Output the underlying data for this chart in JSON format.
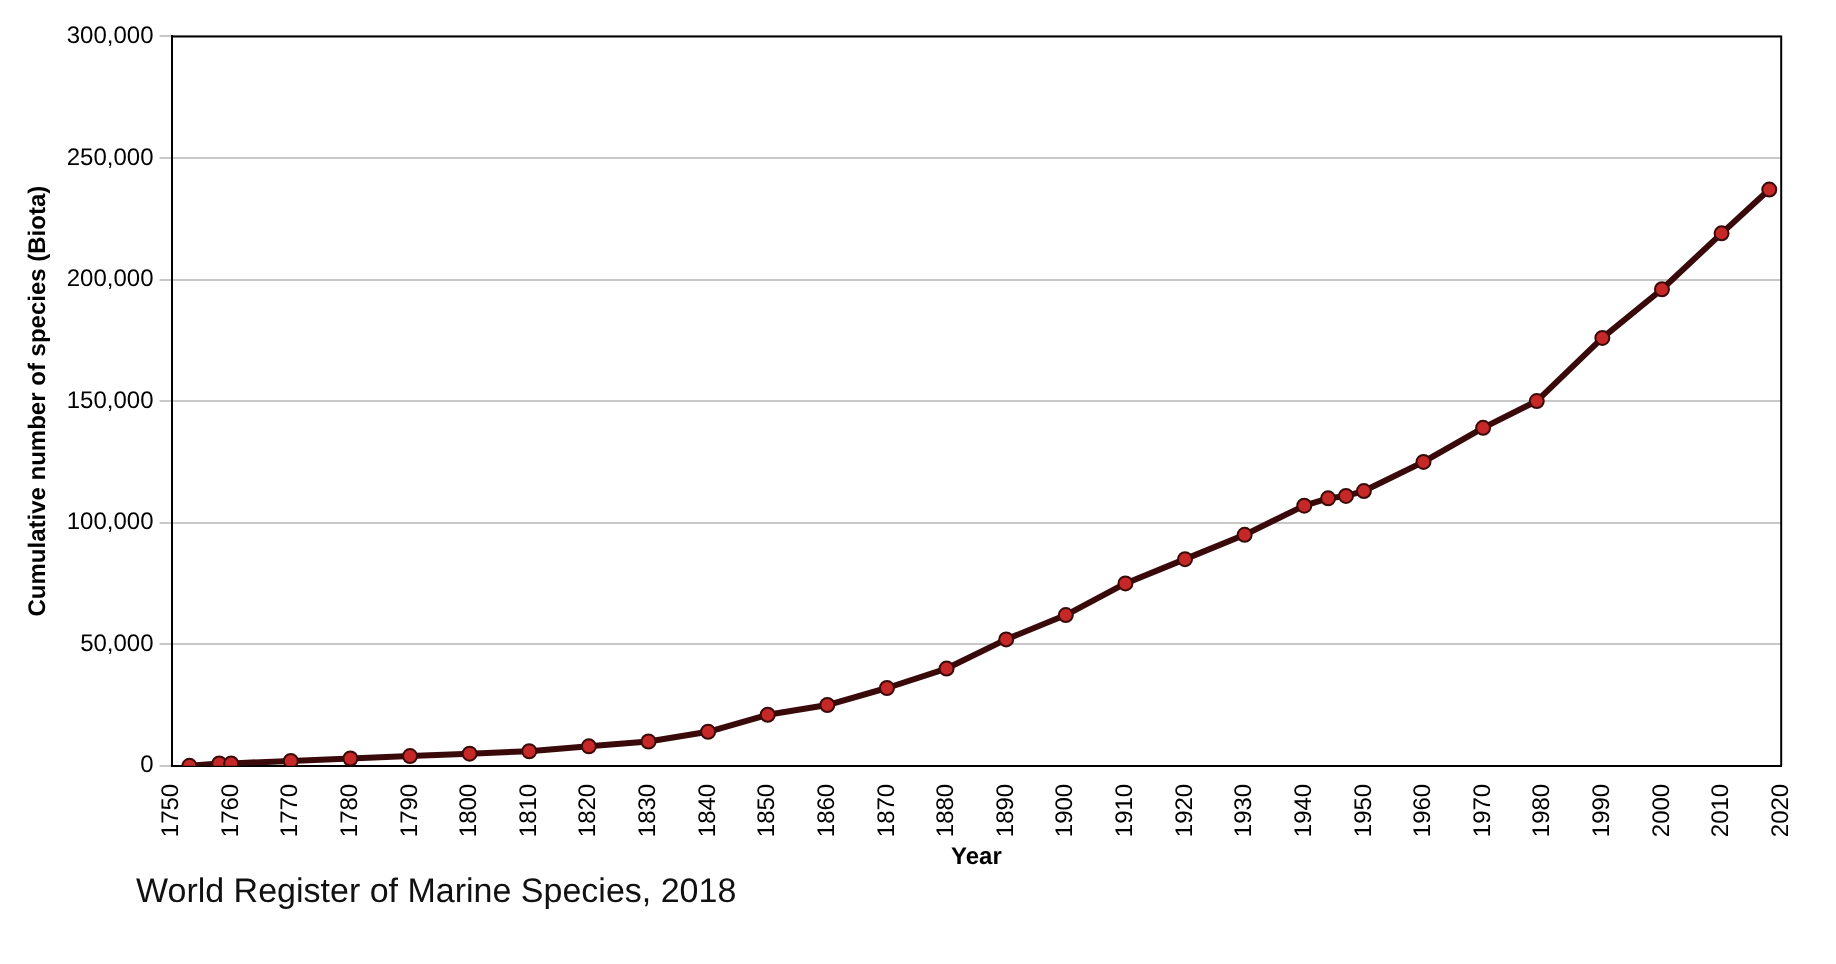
{
  "chart_data": {
    "type": "line",
    "xlabel": "Year",
    "ylabel": "Cumulative number of species (Biota)",
    "annotations": [
      "World Register of Marine Species, 2018"
    ],
    "x": [
      1753,
      1758,
      1760,
      1770,
      1780,
      1790,
      1800,
      1810,
      1820,
      1830,
      1840,
      1850,
      1860,
      1870,
      1880,
      1890,
      1900,
      1910,
      1920,
      1930,
      1940,
      1944,
      1947,
      1950,
      1960,
      1970,
      1979,
      1990,
      2000,
      2010,
      2018
    ],
    "series": [
      {
        "color": "#c62828",
        "values": [
          0,
          1000,
          1000,
          2000,
          3000,
          4000,
          5000,
          6000,
          8000,
          10000,
          14000,
          21000,
          25000,
          32000,
          40000,
          52000,
          62000,
          75000,
          85000,
          95000,
          107000,
          110000,
          111000,
          113000,
          125000,
          139000,
          150000,
          176000,
          196000,
          219000,
          237000
        ]
      }
    ],
    "xlim": [
      1750,
      2020
    ],
    "xticks": [
      1750,
      1760,
      1770,
      1780,
      1790,
      1800,
      1810,
      1820,
      1830,
      1840,
      1850,
      1860,
      1870,
      1880,
      1890,
      1900,
      1910,
      1920,
      1930,
      1940,
      1950,
      1960,
      1970,
      1980,
      1990,
      2000,
      2010,
      2020
    ],
    "ylim": [
      0,
      300000
    ],
    "yticks": [
      {
        "value": 0,
        "label": "0"
      },
      {
        "value": 50000,
        "label": "50,000"
      },
      {
        "value": 100000,
        "label": "100,000"
      },
      {
        "value": 150000,
        "label": "150,000"
      },
      {
        "value": 200000,
        "label": "200,000"
      },
      {
        "value": 250000,
        "label": "250,000"
      },
      {
        "value": 300000,
        "label": "300,000"
      }
    ],
    "grid": "y",
    "marker": "circle",
    "line_style": "solid",
    "legend": false
  }
}
